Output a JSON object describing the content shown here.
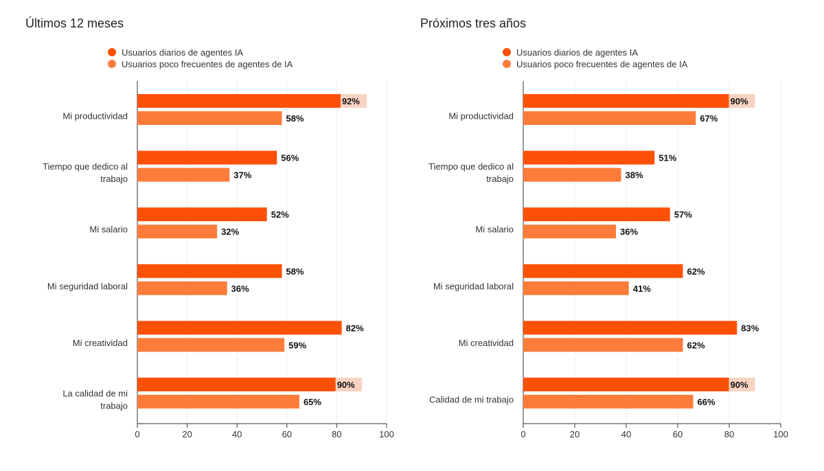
{
  "colors": {
    "daily": "#fd5108",
    "infrequent": "#fe7c39",
    "label_bg": "#f9d3c2",
    "grid": "#dddddd",
    "axis": "#333333"
  },
  "chart_data": [
    {
      "type": "bar",
      "orientation": "horizontal",
      "title": "Últimos 12 meses",
      "categories": [
        "Mi productividad",
        "Tiempo que dedico al trabajo",
        "Mi salario",
        "Mi seguridad laboral",
        "Mi creatividad",
        "La calidad de mi trabajo"
      ],
      "series": [
        {
          "name": "Usuarios diarios de agentes IA",
          "values": [
            92,
            56,
            52,
            58,
            82,
            90
          ]
        },
        {
          "name": "Usuarios poco frecuentes de agentes de IA",
          "values": [
            58,
            37,
            32,
            36,
            59,
            65
          ]
        }
      ],
      "value_labels": [
        [
          "92%",
          "56%",
          "52%",
          "58%",
          "82%",
          "90%"
        ],
        [
          "58%",
          "37%",
          "32%",
          "36%",
          "59%",
          "65%"
        ]
      ],
      "xlim": [
        0,
        100
      ],
      "xticks": [
        "0",
        "20",
        "40",
        "60",
        "80",
        "100"
      ],
      "grid": true,
      "legend": "top"
    },
    {
      "type": "bar",
      "orientation": "horizontal",
      "title": "Próximos tres años",
      "categories": [
        "Mi productividad",
        "Tiempo que dedico al trabajo",
        "Mi salario",
        "Mi seguridad laboral",
        "Mi creatividad",
        "Calidad de mi trabajo"
      ],
      "series": [
        {
          "name": "Usuarios diarios de agentes IA",
          "values": [
            90,
            51,
            57,
            62,
            83,
            90
          ]
        },
        {
          "name": "Usuarios poco frecuentes de agentes de IA",
          "values": [
            67,
            38,
            36,
            41,
            62,
            66
          ]
        }
      ],
      "value_labels": [
        [
          "90%",
          "51%",
          "57%",
          "62%",
          "83%",
          "90%"
        ],
        [
          "67%",
          "38%",
          "36%",
          "41%",
          "62%",
          "66%"
        ]
      ],
      "xlim": [
        0,
        100
      ],
      "xticks": [
        "0",
        "20",
        "40",
        "60",
        "80",
        "100"
      ],
      "grid": true,
      "legend": "top"
    }
  ]
}
